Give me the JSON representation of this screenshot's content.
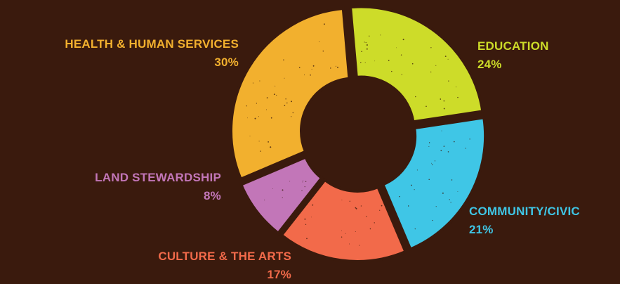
{
  "chart_data": {
    "type": "pie",
    "title": "",
    "style": "donut",
    "categories": [
      "HEALTH & HUMAN SERVICES",
      "EDUCATION",
      "COMMUNITY/CIVIC",
      "CULTURE & THE ARTS",
      "LAND STEWARDSHIP"
    ],
    "values": [
      30,
      24,
      21,
      17,
      8
    ],
    "labels": [
      "30%",
      "24%",
      "21%",
      "17%",
      "8%"
    ],
    "colors": [
      "#f2b02e",
      "#cddc29",
      "#3fc6e6",
      "#f26a4a",
      "#c276b8"
    ],
    "background": "#3a1a0d"
  }
}
